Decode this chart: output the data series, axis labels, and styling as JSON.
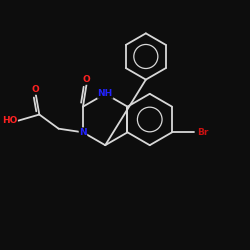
{
  "bg_color": "#0d0d0d",
  "bond_color": "#d8d8d8",
  "atom_colors": {
    "O": "#ff2222",
    "N": "#2222ff",
    "Br": "#cc1111",
    "C": "#d8d8d8"
  },
  "figsize": [
    2.5,
    2.5
  ],
  "dpi": 100,
  "xlim": [
    0,
    10
  ],
  "ylim": [
    0,
    10
  ],
  "BL": 1.05
}
